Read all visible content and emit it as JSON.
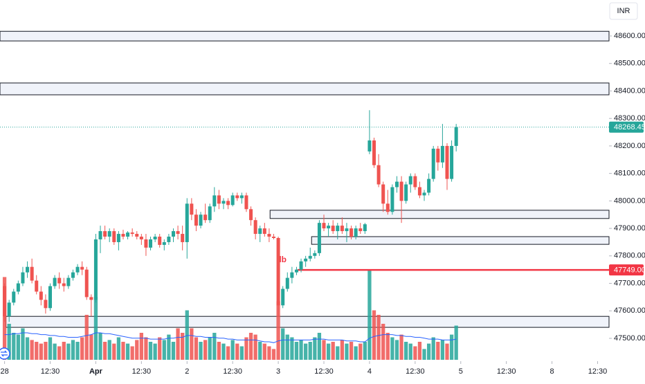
{
  "chart_data": {
    "type": "candlestick",
    "currency": "INR",
    "annotation": "lb",
    "up_color": "#26a69a",
    "down_color": "#ef5350",
    "zone_color": "#f0f3fa",
    "ma_color": "#2962ff",
    "ylim": [
      47430,
      48700
    ],
    "yticks": [
      {
        "value": 47500,
        "label": "47500.00"
      },
      {
        "value": 47600,
        "label": "47600.00"
      },
      {
        "value": 47700,
        "label": "47700.00"
      },
      {
        "value": 47800,
        "label": "47800.00"
      },
      {
        "value": 47900,
        "label": "47900.00"
      },
      {
        "value": 48000,
        "label": "48000.00"
      },
      {
        "value": 48100,
        "label": "48100.00"
      },
      {
        "value": 48200,
        "label": "48200.00"
      },
      {
        "value": 48300,
        "label": "48300.00"
      },
      {
        "value": 48400,
        "label": "48400.00"
      },
      {
        "value": 48500,
        "label": "48500.00"
      },
      {
        "value": 48600,
        "label": "48600.00"
      }
    ],
    "xlim": [
      -1,
      132.5
    ],
    "xticks": [
      {
        "value": 0,
        "label": "28"
      },
      {
        "value": 10,
        "label": "12:30"
      },
      {
        "value": 20,
        "label": "Apr"
      },
      {
        "value": 30,
        "label": "12:30"
      },
      {
        "value": 40,
        "label": "2"
      },
      {
        "value": 50,
        "label": "12:30"
      },
      {
        "value": 60,
        "label": "3"
      },
      {
        "value": 70,
        "label": "12:30"
      },
      {
        "value": 80,
        "label": "4"
      },
      {
        "value": 90,
        "label": "12:30"
      },
      {
        "value": 100,
        "label": "5"
      },
      {
        "value": 110,
        "label": "12:30"
      },
      {
        "value": 120,
        "label": "8"
      },
      {
        "value": 130,
        "label": "12:30"
      }
    ],
    "level": {
      "value": 47749,
      "label": "47749.00",
      "start": 64.2,
      "color": "#f23645"
    },
    "annotation_at": [
      61,
      47760
    ],
    "zones": [
      {
        "from": 48582,
        "to": 48617,
        "start": -1
      },
      {
        "from": 48386,
        "to": 48429,
        "start": -1
      },
      {
        "from": 47936,
        "to": 47966,
        "start": 58.2
      },
      {
        "from": 47842,
        "to": 47870,
        "start": 67.3
      },
      {
        "from": 47540,
        "to": 47580,
        "start": 0.3
      }
    ],
    "candles": [
      [
        47690,
        47700,
        47560,
        47580
      ],
      [
        47580,
        47640,
        47560,
        47630
      ],
      [
        47630,
        47680,
        47620,
        47670
      ],
      [
        47670,
        47710,
        47660,
        47700
      ],
      [
        47700,
        47760,
        47690,
        47740
      ],
      [
        47740,
        47780,
        47720,
        47760
      ],
      [
        47760,
        47790,
        47700,
        47710
      ],
      [
        47710,
        47730,
        47660,
        47670
      ],
      [
        47670,
        47690,
        47620,
        47640
      ],
      [
        47640,
        47660,
        47590,
        47610
      ],
      [
        47610,
        47700,
        47600,
        47690
      ],
      [
        47690,
        47730,
        47680,
        47720
      ],
      [
        47720,
        47740,
        47680,
        47700
      ],
      [
        47700,
        47720,
        47670,
        47690
      ],
      [
        47690,
        47730,
        47680,
        47720
      ],
      [
        47720,
        47750,
        47710,
        47740
      ],
      [
        47740,
        47770,
        47730,
        47760
      ],
      [
        47760,
        47780,
        47730,
        47750
      ],
      [
        47750,
        47760,
        47640,
        47650
      ],
      [
        47650,
        47660,
        47580,
        47640
      ],
      [
        47640,
        47880,
        47630,
        47860
      ],
      [
        47860,
        47910,
        47810,
        47890
      ],
      [
        47890,
        47910,
        47860,
        47870
      ],
      [
        47870,
        47900,
        47850,
        47890
      ],
      [
        47890,
        47900,
        47840,
        47850
      ],
      [
        47850,
        47890,
        47820,
        47880
      ],
      [
        47880,
        47895,
        47860,
        47870
      ],
      [
        47870,
        47890,
        47860,
        47885
      ],
      [
        47885,
        47900,
        47870,
        47880
      ],
      [
        47880,
        47890,
        47860,
        47870
      ],
      [
        47870,
        47880,
        47840,
        47860
      ],
      [
        47860,
        47880,
        47800,
        47830
      ],
      [
        47830,
        47870,
        47820,
        47860
      ],
      [
        47860,
        47880,
        47850,
        47870
      ],
      [
        47870,
        47880,
        47830,
        47840
      ],
      [
        47840,
        47860,
        47820,
        47850
      ],
      [
        47850,
        47880,
        47840,
        47870
      ],
      [
        47870,
        47900,
        47850,
        47890
      ],
      [
        47890,
        47910,
        47860,
        47880
      ],
      [
        47880,
        47910,
        47820,
        47850
      ],
      [
        47850,
        48010,
        47790,
        47990
      ],
      [
        47990,
        48010,
        47930,
        47950
      ],
      [
        47950,
        47970,
        47890,
        47910
      ],
      [
        47910,
        47960,
        47900,
        47950
      ],
      [
        47950,
        47990,
        47920,
        47930
      ],
      [
        47930,
        47990,
        47920,
        47980
      ],
      [
        47980,
        48050,
        47960,
        48020
      ],
      [
        48020,
        48040,
        47970,
        47990
      ],
      [
        47990,
        48010,
        47970,
        48000
      ],
      [
        48000,
        48010,
        47970,
        47985
      ],
      [
        47985,
        48030,
        47980,
        48020
      ],
      [
        48020,
        48030,
        48000,
        48010
      ],
      [
        48010,
        48030,
        47990,
        48020
      ],
      [
        48020,
        48030,
        47960,
        47970
      ],
      [
        47970,
        47980,
        47910,
        47930
      ],
      [
        47930,
        47940,
        47860,
        47880
      ],
      [
        47880,
        47910,
        47850,
        47900
      ],
      [
        47900,
        47920,
        47870,
        47880
      ],
      [
        47880,
        47900,
        47850,
        47870
      ],
      [
        47870,
        47880,
        47860,
        47865
      ],
      [
        47865,
        47870,
        47580,
        47620
      ],
      [
        47620,
        47690,
        47610,
        47680
      ],
      [
        47680,
        47740,
        47670,
        47720
      ],
      [
        47720,
        47760,
        47700,
        47740
      ],
      [
        47740,
        47760,
        47730,
        47750
      ],
      [
        47750,
        47790,
        47740,
        47780
      ],
      [
        47780,
        47800,
        47760,
        47790
      ],
      [
        47790,
        47830,
        47780,
        47800
      ],
      [
        47800,
        47820,
        47790,
        47810
      ],
      [
        47810,
        47930,
        47800,
        47920
      ],
      [
        47920,
        47950,
        47890,
        47900
      ],
      [
        47900,
        47920,
        47870,
        47910
      ],
      [
        47910,
        47930,
        47880,
        47890
      ],
      [
        47890,
        47920,
        47860,
        47910
      ],
      [
        47910,
        47940,
        47880,
        47890
      ],
      [
        47890,
        47920,
        47850,
        47900
      ],
      [
        47900,
        47910,
        47860,
        47870
      ],
      [
        47870,
        47910,
        47860,
        47900
      ],
      [
        47900,
        47920,
        47880,
        47890
      ],
      [
        47890,
        47920,
        47880,
        47915
      ],
      [
        48180,
        48330,
        48170,
        48220
      ],
      [
        48220,
        48230,
        48120,
        48130
      ],
      [
        48130,
        48170,
        48050,
        48060
      ],
      [
        48060,
        48070,
        47960,
        47990
      ],
      [
        47990,
        48040,
        47950,
        47960
      ],
      [
        47960,
        48060,
        47950,
        48050
      ],
      [
        48050,
        48090,
        48030,
        48070
      ],
      [
        48070,
        48090,
        47920,
        48000
      ],
      [
        48000,
        48070,
        47990,
        48060
      ],
      [
        48060,
        48100,
        48030,
        48090
      ],
      [
        48090,
        48100,
        48040,
        48050
      ],
      [
        48050,
        48070,
        48010,
        48020
      ],
      [
        48020,
        48040,
        48000,
        48030
      ],
      [
        48030,
        48100,
        48020,
        48080
      ],
      [
        48080,
        48200,
        48070,
        48190
      ],
      [
        48190,
        48200,
        48110,
        48140
      ],
      [
        48140,
        48280,
        48120,
        48200
      ],
      [
        48200,
        48210,
        48040,
        48080
      ],
      [
        48080,
        48220,
        48070,
        48200
      ],
      [
        48200,
        48280,
        48180,
        48268.45
      ]
    ],
    "vlim": [
      0,
      100
    ],
    "volume": [
      92,
      40,
      30,
      28,
      35,
      25,
      22,
      20,
      18,
      20,
      25,
      18,
      15,
      20,
      18,
      22,
      20,
      25,
      50,
      28,
      70,
      30,
      20,
      22,
      18,
      25,
      20,
      18,
      15,
      22,
      30,
      25,
      20,
      18,
      25,
      22,
      28,
      20,
      35,
      30,
      55,
      35,
      25,
      20,
      22,
      25,
      30,
      20,
      18,
      15,
      22,
      18,
      15,
      25,
      30,
      28,
      20,
      18,
      15,
      12,
      65,
      35,
      28,
      25,
      20,
      22,
      18,
      20,
      25,
      30,
      22,
      18,
      20,
      15,
      22,
      18,
      20,
      15,
      18,
      20,
      100,
      55,
      50,
      40,
      30,
      25,
      22,
      28,
      20,
      18,
      15,
      20,
      12,
      18,
      25,
      20,
      22,
      18,
      28,
      38
    ],
    "volume_ma": [
      28,
      28,
      29,
      29,
      30,
      30,
      29,
      29,
      28,
      28,
      27,
      27,
      26,
      26,
      25,
      25,
      25,
      26,
      27,
      28,
      30,
      30,
      29,
      29,
      28,
      27,
      26,
      25,
      24,
      24,
      24,
      24,
      23,
      23,
      23,
      23,
      24,
      24,
      25,
      25,
      27,
      27,
      26,
      26,
      25,
      25,
      25,
      24,
      24,
      23,
      23,
      22,
      22,
      22,
      22,
      22,
      21,
      20,
      20,
      19,
      21,
      22,
      22,
      22,
      22,
      22,
      22,
      22,
      23,
      23,
      23,
      22,
      22,
      22,
      22,
      21,
      21,
      21,
      20,
      20,
      24,
      26,
      27,
      28,
      28,
      28,
      27,
      27,
      26,
      26,
      25,
      25,
      24,
      23,
      23,
      23,
      22,
      22,
      22,
      23
    ]
  }
}
